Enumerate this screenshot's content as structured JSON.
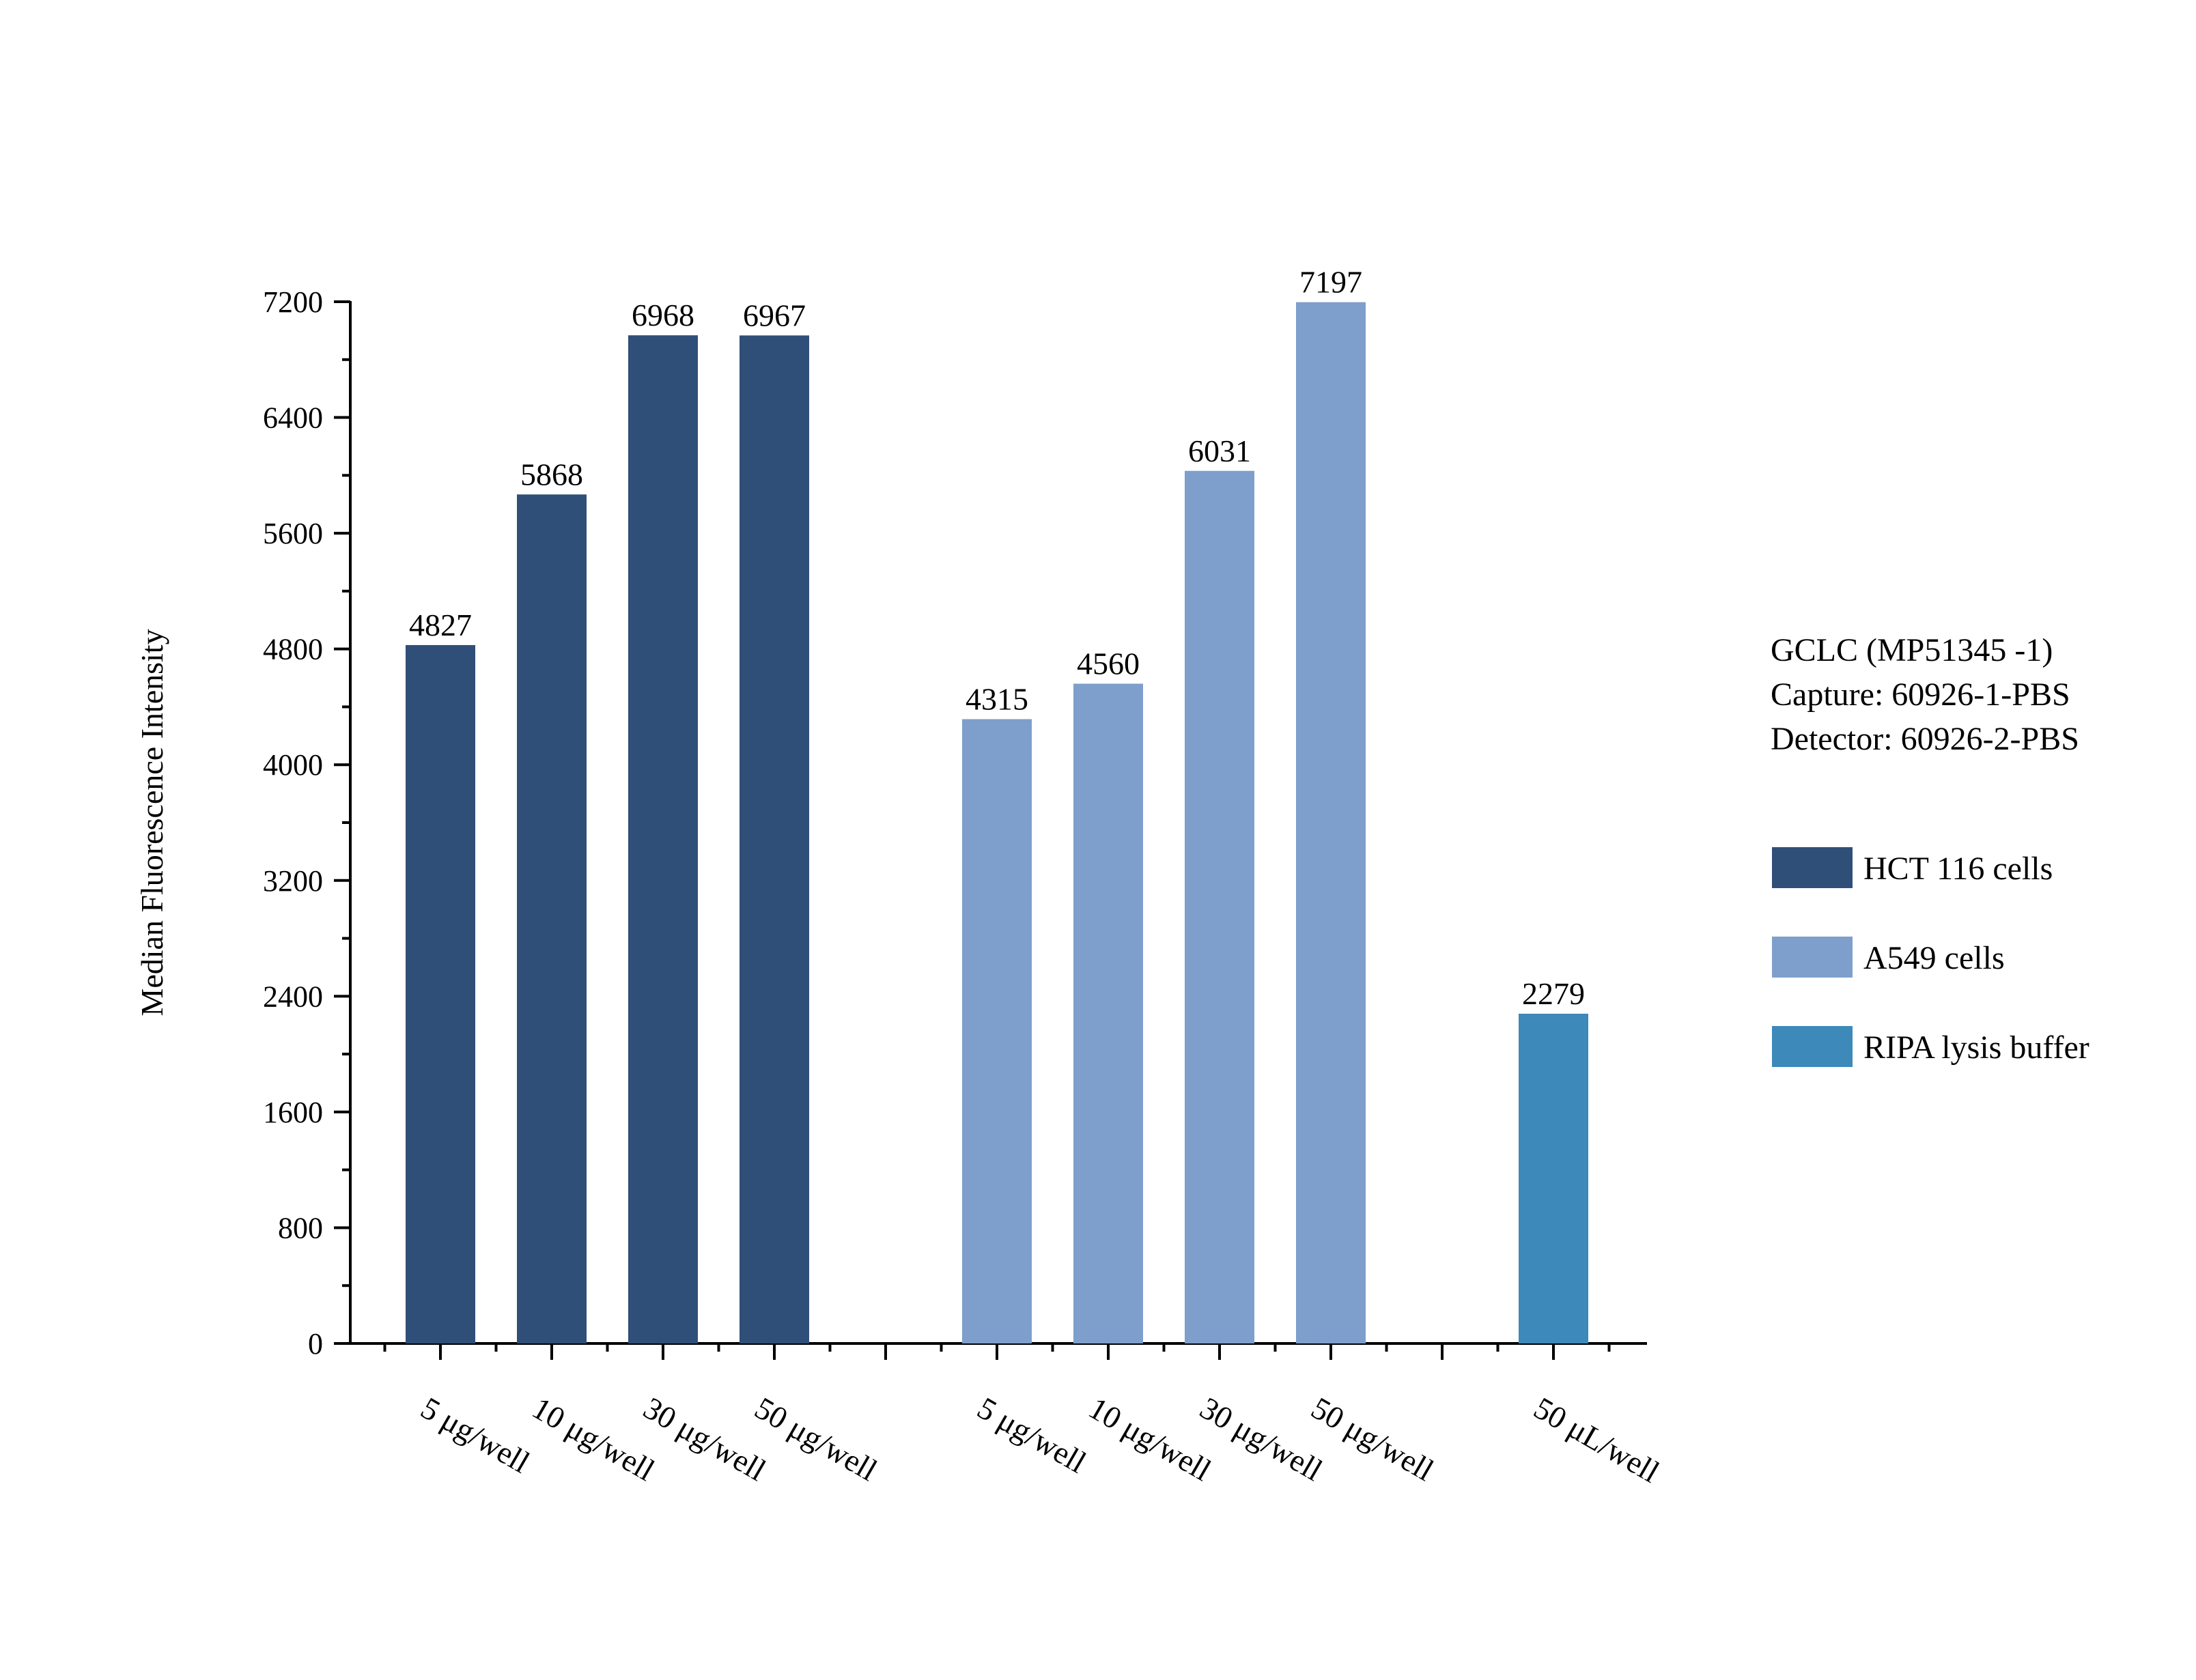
{
  "chart_data": {
    "type": "bar",
    "ylabel": "Median Fluorescence Intensity",
    "ylim": [
      0,
      7200
    ],
    "y_ticks": [
      0,
      800,
      1600,
      2400,
      3200,
      4000,
      4800,
      5600,
      6400,
      7200
    ],
    "grid": false,
    "legend_placement": "right",
    "info": [
      "GCLC (MP51345 -1)",
      "Capture: 60926-1-PBS",
      "Detector: 60926-2-PBS"
    ],
    "series": [
      {
        "name": "HCT 116 cells",
        "color": "#2f4f78",
        "categories": [
          "5 μg/well",
          "10 μg/well",
          "30 μg/well",
          "50 μg/well"
        ],
        "values": [
          4827,
          5868,
          6968,
          6967
        ]
      },
      {
        "name": "A549 cells",
        "color": "#7e9fcb",
        "categories": [
          "5 μg/well",
          "10 μg/well",
          "30 μg/well",
          "50 μg/well"
        ],
        "values": [
          4315,
          4560,
          6031,
          7197
        ]
      },
      {
        "name": "RIPA lysis buffer",
        "color": "#3d89b9",
        "categories": [
          "50 μL/well"
        ],
        "values": [
          2279
        ]
      }
    ]
  }
}
